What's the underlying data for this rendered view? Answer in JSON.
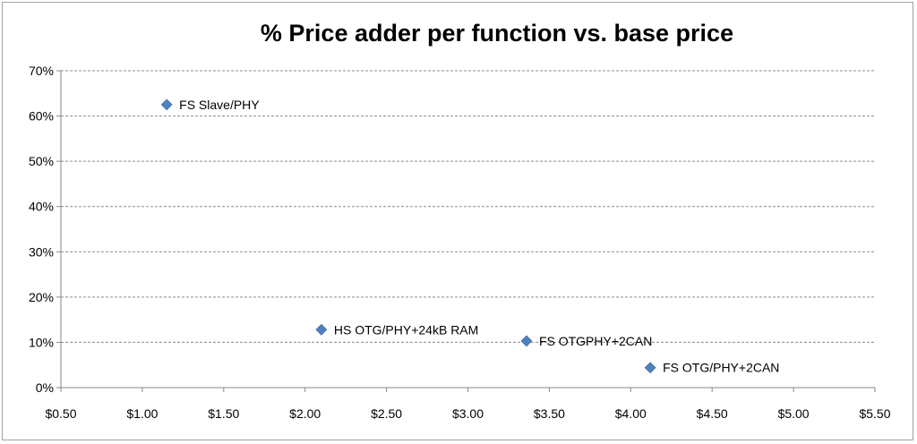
{
  "chart_data": {
    "type": "scatter",
    "title": "% Price adder per function vs. base price",
    "xlabel": "",
    "ylabel": "",
    "xlim": [
      0.5,
      5.5
    ],
    "ylim": [
      0,
      0.7
    ],
    "x_ticks": [
      "$0.50",
      "$1.00",
      "$1.50",
      "$2.00",
      "$2.50",
      "$3.00",
      "$3.50",
      "$4.00",
      "$4.50",
      "$5.00",
      "$5.50"
    ],
    "y_ticks": [
      "0%",
      "10%",
      "20%",
      "30%",
      "40%",
      "50%",
      "60%",
      "70%"
    ],
    "grid": "horizontal dashed",
    "legend": "none",
    "marker_color": "#4f81bd",
    "points": [
      {
        "label": "FS Slave/PHY",
        "x": 1.15,
        "y": 0.625
      },
      {
        "label": "HS OTG/PHY+24kB RAM",
        "x": 2.1,
        "y": 0.128
      },
      {
        "label": "FS OTGPHY+2CAN",
        "x": 3.36,
        "y": 0.103
      },
      {
        "label": "FS OTG/PHY+2CAN",
        "x": 4.12,
        "y": 0.044
      }
    ]
  }
}
